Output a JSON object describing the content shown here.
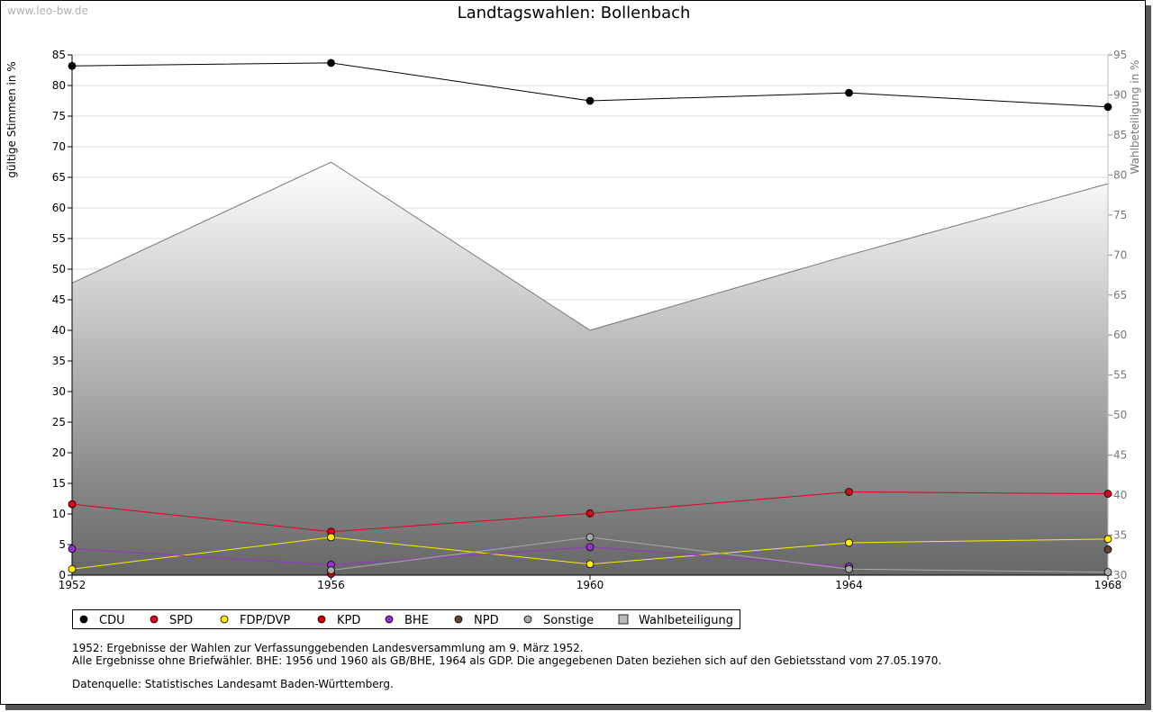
{
  "watermark": "www.leo-bw.de",
  "chart_data": {
    "type": "line",
    "title": "Landtagswahlen: Bollenbach",
    "ylabel": "gültige Stimmen in %",
    "y2label": "Wahlbeteiligung in %",
    "x": [
      "1952",
      "1956",
      "1960",
      "1964",
      "1968"
    ],
    "x_numeric": [
      1952,
      1956,
      1960,
      1964,
      1968
    ],
    "ylim": [
      0,
      85
    ],
    "y2lim": [
      30,
      95
    ],
    "yticks": [
      "0",
      "5",
      "10",
      "15",
      "20",
      "25",
      "30",
      "35",
      "40",
      "45",
      "50",
      "55",
      "60",
      "65",
      "70",
      "75",
      "80",
      "85"
    ],
    "y2ticks": [
      "30",
      "35",
      "40",
      "45",
      "50",
      "55",
      "60",
      "65",
      "70",
      "75",
      "80",
      "85",
      "90",
      "95"
    ],
    "grid": true,
    "legend_position": "bottom",
    "series": [
      {
        "name": "CDU",
        "color": "#000000",
        "values": [
          83.2,
          83.7,
          77.5,
          78.8,
          76.5
        ]
      },
      {
        "name": "SPD",
        "color": "#e0001a",
        "values": [
          11.6,
          7.1,
          10.1,
          13.6,
          13.3
        ]
      },
      {
        "name": "FDP/DVP",
        "color": "#ffee00",
        "values": [
          1.0,
          6.2,
          1.8,
          5.3,
          5.9
        ]
      },
      {
        "name": "KPD",
        "color": "#cc0000",
        "values": [
          null,
          0.2,
          null,
          null,
          null
        ]
      },
      {
        "name": "BHE",
        "color": "#9933cc",
        "values": [
          4.3,
          1.7,
          4.6,
          1.4,
          null
        ]
      },
      {
        "name": "NPD",
        "color": "#664433",
        "values": [
          null,
          null,
          null,
          null,
          4.2
        ]
      },
      {
        "name": "Sonstige",
        "color": "#aaaaaa",
        "values": [
          null,
          0.8,
          6.2,
          1.0,
          0.5
        ]
      }
    ],
    "turnout": {
      "name": "Wahlbeteiligung",
      "color": "#bbbbbb",
      "values": [
        66.5,
        81.6,
        60.6,
        70.0,
        78.9
      ]
    }
  },
  "notes": [
    "1952: Ergebnisse der Wahlen zur Verfassunggebenden Landesversammlung am 9. März 1952.",
    "Alle Ergebnisse ohne Briefwähler. BHE: 1956 und 1960 als GB/BHE, 1964 als GDP. Die angegebenen Daten beziehen sich auf den Gebietsstand vom 27.05.1970.",
    "Datenquelle: Statistisches Landesamt Baden-Württemberg."
  ]
}
